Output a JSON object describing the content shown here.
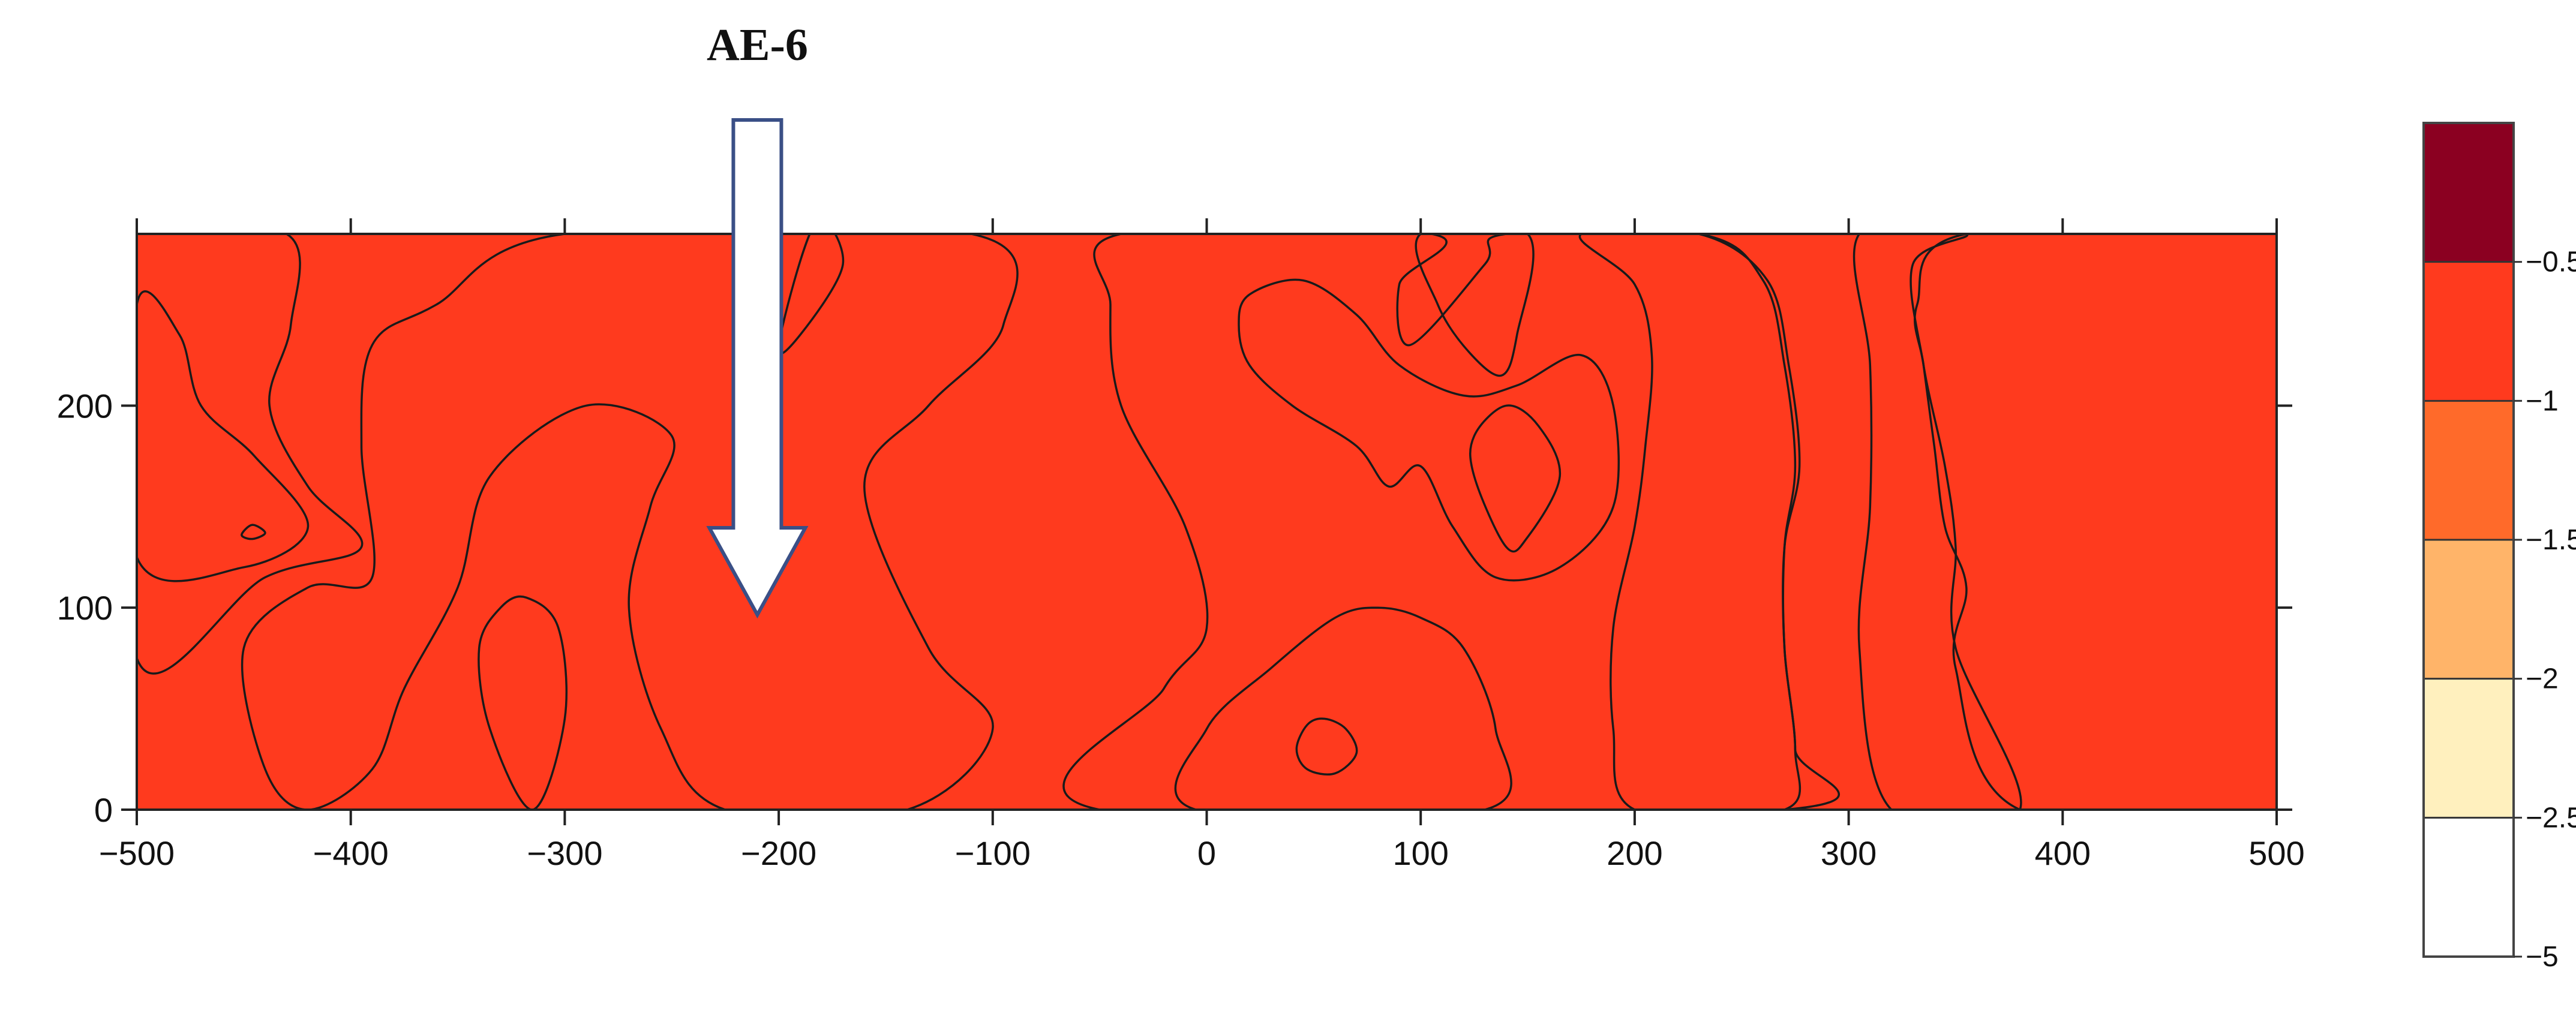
{
  "chart_data": {
    "type": "contour",
    "xlim": [
      -500,
      500
    ],
    "ylim": [
      0,
      285
    ],
    "x_ticks": [
      -500,
      -400,
      -300,
      -200,
      -100,
      0,
      100,
      200,
      300,
      400,
      500
    ],
    "y_ticks": [
      0,
      100,
      200
    ],
    "annotation": {
      "label": "AE-6",
      "x": -210,
      "type": "downward-arrow"
    },
    "colorbar": {
      "levels": [
        {
          "label": "-0.5",
          "color": "#8B0021"
        },
        {
          "label": "-1",
          "color": "#FF3A1E"
        },
        {
          "label": "-1.5",
          "color": "#FF6A2A"
        },
        {
          "label": "-2",
          "color": "#FFB469"
        },
        {
          "label": "-2.5",
          "color": "#FFF0BE"
        },
        {
          "label": "-5",
          "color": "#FFFFFF"
        }
      ],
      "bands_top_to_bottom": [
        "#8B0021",
        "#FF3A1E",
        "#FF6A2A",
        "#FFB469",
        "#FFF0BE",
        "#FFFFFF"
      ]
    },
    "regions": [
      {
        "level": "-1",
        "shape": "base field",
        "color": "#FF3A1E"
      },
      {
        "level": "-1.5",
        "shape": "polygon",
        "color": "#FF6A2A",
        "points": [
          [
            -500,
            285
          ],
          [
            -430,
            285
          ],
          [
            -428,
            240
          ],
          [
            -438,
            200
          ],
          [
            -420,
            160
          ],
          [
            -395,
            130
          ],
          [
            -440,
            115
          ],
          [
            -500,
            75
          ]
        ]
      },
      {
        "level": "-2",
        "shape": "polygon",
        "color": "#FFB469",
        "points": [
          [
            -500,
            250
          ],
          [
            -480,
            235
          ],
          [
            -470,
            200
          ],
          [
            -445,
            175
          ],
          [
            -420,
            140
          ],
          [
            -450,
            120
          ],
          [
            -500,
            125
          ]
        ]
      },
      {
        "level": "-2.5",
        "shape": "polygon",
        "color": "#FFF0BE",
        "points": [
          [
            -451,
            136
          ],
          [
            -446,
            134
          ],
          [
            -440,
            137
          ],
          [
            -446,
            141
          ]
        ]
      },
      {
        "level": "-0.5",
        "shape": "polygon",
        "color": "#8B0021",
        "points": [
          [
            -300,
            285
          ],
          [
            -110,
            285
          ],
          [
            -95,
            240
          ],
          [
            -130,
            200
          ],
          [
            -160,
            160
          ],
          [
            -130,
            80
          ],
          [
            -100,
            40
          ],
          [
            -140,
            0
          ],
          [
            -225,
            0
          ],
          [
            -255,
            40
          ],
          [
            -270,
            100
          ],
          [
            -260,
            150
          ],
          [
            -250,
            185
          ],
          [
            -290,
            200
          ],
          [
            -335,
            165
          ],
          [
            -350,
            110
          ],
          [
            -375,
            60
          ],
          [
            -390,
            20
          ],
          [
            -420,
            0
          ],
          [
            -440,
            20
          ],
          [
            -450,
            80
          ],
          [
            -420,
            110
          ],
          [
            -390,
            115
          ],
          [
            -395,
            180
          ],
          [
            -390,
            230
          ],
          [
            -360,
            250
          ]
        ]
      },
      {
        "level": "-1",
        "shape": "polygon",
        "color": "#FF3A1E",
        "points": [
          [
            -183,
            290
          ],
          [
            -170,
            270
          ],
          [
            -190,
            235
          ],
          [
            -200,
            230
          ]
        ]
      },
      {
        "level": "-1.5",
        "shape": "polygon",
        "color": "#FF6A2A",
        "points": [
          [
            -318,
            105
          ],
          [
            -303,
            90
          ],
          [
            -300,
            45
          ],
          [
            -315,
            0
          ],
          [
            -335,
            40
          ],
          [
            -340,
            80
          ],
          [
            -330,
            100
          ]
        ]
      },
      {
        "level": "-1.5",
        "shape": "polygon",
        "color": "#FF6A2A",
        "points": [
          [
            -40,
            285
          ],
          [
            105,
            285
          ],
          [
            90,
            260
          ],
          [
            95,
            230
          ],
          [
            130,
            270
          ],
          [
            140,
            285
          ],
          [
            230,
            285
          ],
          [
            260,
            262
          ],
          [
            270,
            220
          ],
          [
            275,
            170
          ],
          [
            270,
            130
          ],
          [
            270,
            80
          ],
          [
            275,
            30
          ],
          [
            270,
            0
          ],
          [
            -50,
            0
          ],
          [
            -20,
            60
          ],
          [
            0,
            90
          ],
          [
            -10,
            140
          ],
          [
            -40,
            200
          ],
          [
            -45,
            250
          ]
        ]
      },
      {
        "level": "-1",
        "shape": "polygon",
        "color": "#FF3A1E",
        "points": [
          [
            100,
            285
          ],
          [
            108,
            250
          ],
          [
            123,
            226
          ],
          [
            138,
            215
          ],
          [
            145,
            235
          ],
          [
            150,
            285
          ]
        ]
      },
      {
        "level": "-1",
        "shape": "polygon",
        "color": "#FF3A1E",
        "points": [
          [
            175,
            285
          ],
          [
            230,
            285
          ],
          [
            262,
            262
          ],
          [
            272,
            220
          ],
          [
            277,
            170
          ],
          [
            270,
            130
          ],
          [
            270,
            80
          ],
          [
            275,
            30
          ],
          [
            270,
            0
          ],
          [
            200,
            0
          ],
          [
            190,
            40
          ],
          [
            190,
            90
          ],
          [
            200,
            140
          ],
          [
            205,
            180
          ],
          [
            208,
            225
          ],
          [
            200,
            260
          ]
        ]
      },
      {
        "level": "-2",
        "shape": "polygon",
        "color": "#FFB469",
        "points": [
          [
            20,
            255
          ],
          [
            45,
            262
          ],
          [
            70,
            245
          ],
          [
            90,
            220
          ],
          [
            120,
            205
          ],
          [
            145,
            210
          ],
          [
            175,
            225
          ],
          [
            190,
            200
          ],
          [
            190,
            150
          ],
          [
            165,
            120
          ],
          [
            135,
            115
          ],
          [
            115,
            140
          ],
          [
            100,
            170
          ],
          [
            85,
            160
          ],
          [
            70,
            180
          ],
          [
            40,
            200
          ],
          [
            20,
            220
          ],
          [
            15,
            240
          ]
        ]
      },
      {
        "level": "-2.5",
        "shape": "polygon",
        "color": "#FFF0BE",
        "points": [
          [
            140,
            200
          ],
          [
            155,
            190
          ],
          [
            165,
            165
          ],
          [
            150,
            135
          ],
          [
            140,
            130
          ],
          [
            125,
            165
          ],
          [
            125,
            185
          ]
        ]
      },
      {
        "level": "-2",
        "shape": "polygon",
        "color": "#FFB469",
        "points": [
          [
            80,
            100
          ],
          [
            100,
            95
          ],
          [
            120,
            80
          ],
          [
            135,
            40
          ],
          [
            130,
            0
          ],
          [
            -5,
            0
          ],
          [
            0,
            40
          ],
          [
            30,
            70
          ],
          [
            60,
            95
          ]
        ]
      },
      {
        "level": "-2.5",
        "shape": "polygon",
        "color": "#FFF0BE",
        "points": [
          [
            55,
            45
          ],
          [
            65,
            40
          ],
          [
            70,
            28
          ],
          [
            60,
            18
          ],
          [
            47,
            20
          ],
          [
            42,
            30
          ],
          [
            47,
            42
          ]
        ]
      },
      {
        "level": "-2",
        "shape": "polygon",
        "color": "#FFB469",
        "points": [
          [
            305,
            285
          ],
          [
            355,
            285
          ],
          [
            330,
            270
          ],
          [
            335,
            220
          ],
          [
            345,
            170
          ],
          [
            350,
            130
          ],
          [
            350,
            80
          ],
          [
            380,
            0
          ],
          [
            320,
            0
          ],
          [
            305,
            80
          ],
          [
            310,
            150
          ],
          [
            310,
            220
          ]
        ]
      },
      {
        "level": "-2.5",
        "shape": "polygon",
        "color": "#FFF0BE",
        "points": [
          [
            355,
            285
          ],
          [
            500,
            285
          ],
          [
            500,
            0
          ],
          [
            380,
            0
          ],
          [
            350,
            70
          ],
          [
            355,
            110
          ],
          [
            345,
            140
          ],
          [
            340,
            180
          ],
          [
            335,
            220
          ],
          [
            332,
            250
          ]
        ]
      }
    ]
  }
}
